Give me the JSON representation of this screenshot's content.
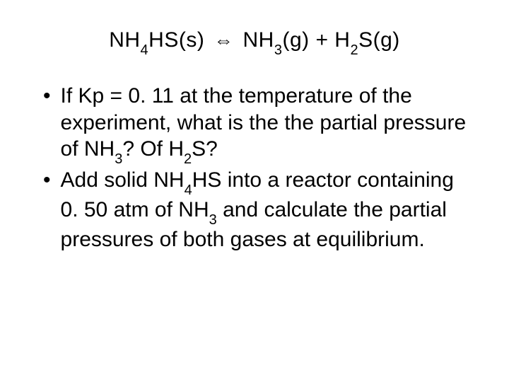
{
  "equation": {
    "parts": [
      {
        "text": "NH",
        "sub": false
      },
      {
        "text": "4",
        "sub": true
      },
      {
        "text": "HS(s)  ",
        "sub": false
      },
      {
        "text": "⇔",
        "sub": false,
        "arrow": true
      },
      {
        "text": " NH",
        "sub": false
      },
      {
        "text": "3",
        "sub": true
      },
      {
        "text": "(g)  +  H",
        "sub": false
      },
      {
        "text": "2",
        "sub": true
      },
      {
        "text": "S(g)",
        "sub": false
      }
    ]
  },
  "bullets": [
    {
      "mark": "•",
      "parts": [
        {
          "text": "If Kp = 0. 11 at the temperature of the experiment, what is the the partial pressure of NH",
          "sub": false
        },
        {
          "text": "3",
          "sub": true
        },
        {
          "text": "? Of H",
          "sub": false
        },
        {
          "text": "2",
          "sub": true
        },
        {
          "text": "S?",
          "sub": false
        }
      ]
    },
    {
      "mark": "•",
      "parts": [
        {
          "text": "Add solid NH",
          "sub": false
        },
        {
          "text": "4",
          "sub": true
        },
        {
          "text": "HS into a reactor containing 0. 50 atm of NH",
          "sub": false
        },
        {
          "text": "3",
          "sub": true
        },
        {
          "text": " and calculate the partial pressures of both gases at equilibrium.",
          "sub": false
        }
      ]
    }
  ],
  "styling": {
    "background_color": "#ffffff",
    "text_color": "#000000",
    "font_family": "Comic Sans MS",
    "equation_fontsize": 30,
    "bullet_fontsize": 30,
    "sub_fontsize": 20,
    "line_height": 1.25
  }
}
